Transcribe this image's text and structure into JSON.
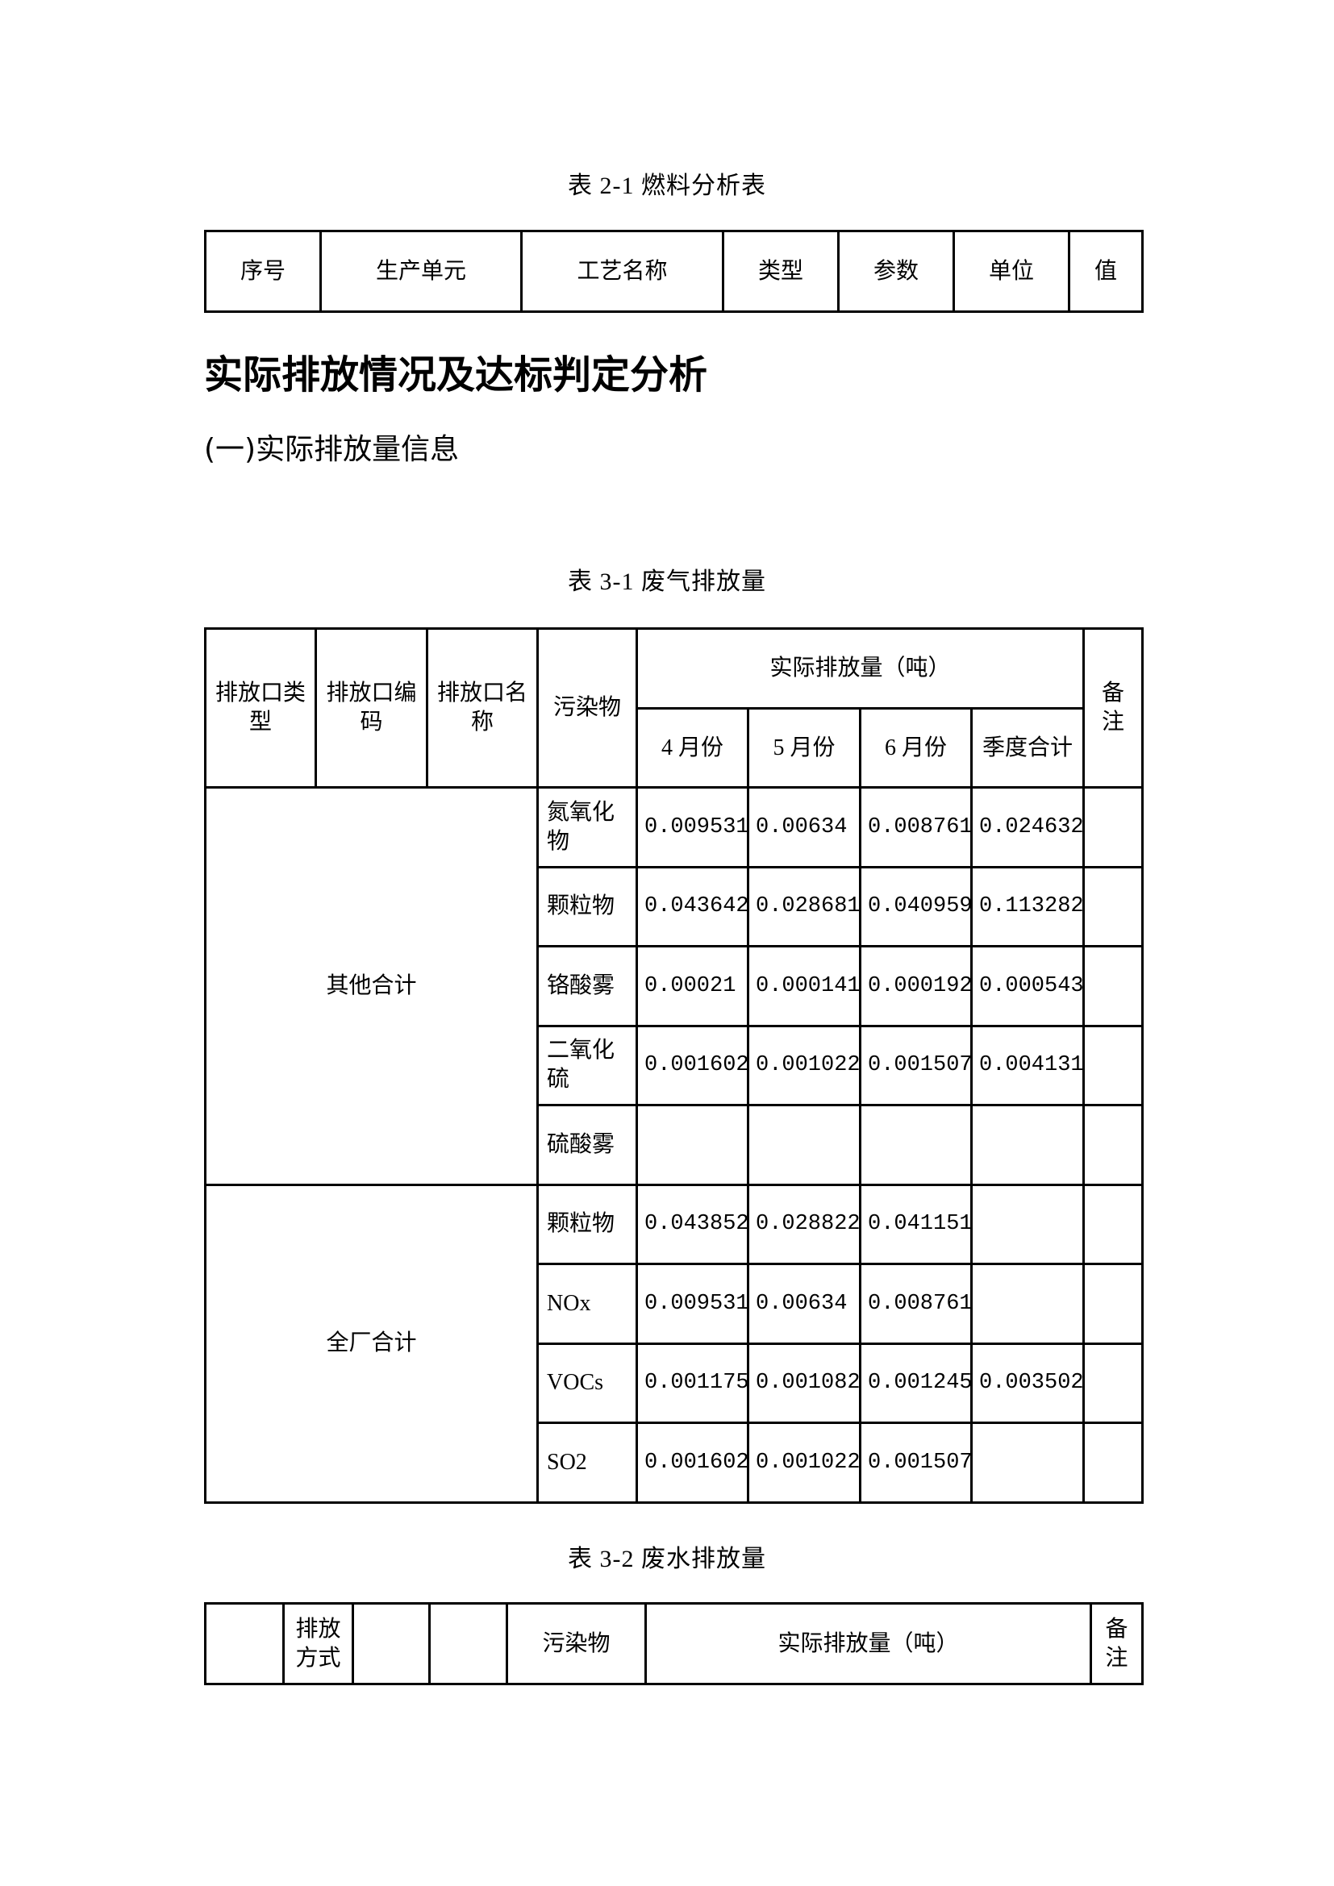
{
  "table_2_1": {
    "caption": "表 2-1 燃料分析表",
    "headers": [
      "序号",
      "生产单元",
      "工艺名称",
      "类型",
      "参数",
      "单位",
      "值"
    ]
  },
  "section": {
    "title": "实际排放情况及达标判定分析",
    "subtitle": "(一)实际排放量信息"
  },
  "table_3_1": {
    "caption": "表 3-1 废气排放量",
    "headers": {
      "outlet_type": "排放口类型",
      "outlet_code": "排放口编码",
      "outlet_name": "排放口名称",
      "pollutant": "污染物",
      "actual": "实际排放量（吨）",
      "remark": "备注",
      "months": [
        "4 月份",
        "5 月份",
        "6 月份",
        "季度合计"
      ]
    },
    "groups": [
      {
        "label": "其他合计",
        "rows": [
          {
            "pollutant": "氮氧化物",
            "v": [
              "0.009531",
              "0.00634",
              "0.008761",
              "0.024632"
            ]
          },
          {
            "pollutant": "颗粒物",
            "v": [
              "0.043642",
              "0.028681",
              "0.040959",
              "0.113282"
            ]
          },
          {
            "pollutant": "铬酸雾",
            "v": [
              "0.00021",
              "0.000141",
              "0.000192",
              "0.000543"
            ]
          },
          {
            "pollutant": "二氧化硫",
            "v": [
              "0.001602",
              "0.001022",
              "0.001507",
              "0.004131"
            ]
          },
          {
            "pollutant": "硫酸雾",
            "v": [
              "",
              "",
              "",
              ""
            ]
          }
        ]
      },
      {
        "label": "全厂合计",
        "rows": [
          {
            "pollutant": "颗粒物",
            "v": [
              "0.043852",
              "0.028822",
              "0.041151",
              ""
            ]
          },
          {
            "pollutant": "NOx",
            "v": [
              "0.009531",
              "0.00634",
              "0.008761",
              ""
            ]
          },
          {
            "pollutant": "VOCs",
            "v": [
              "0.001175",
              "0.001082",
              "0.001245",
              "0.003502"
            ]
          },
          {
            "pollutant": "SO2",
            "v": [
              "0.001602",
              "0.001022",
              "0.001507",
              ""
            ]
          }
        ]
      }
    ]
  },
  "table_3_2": {
    "caption": "表 3-2 废水排放量",
    "headers": [
      "",
      "排放方式",
      "",
      "",
      "污染物",
      "实际排放量（吨）",
      "备注"
    ]
  }
}
